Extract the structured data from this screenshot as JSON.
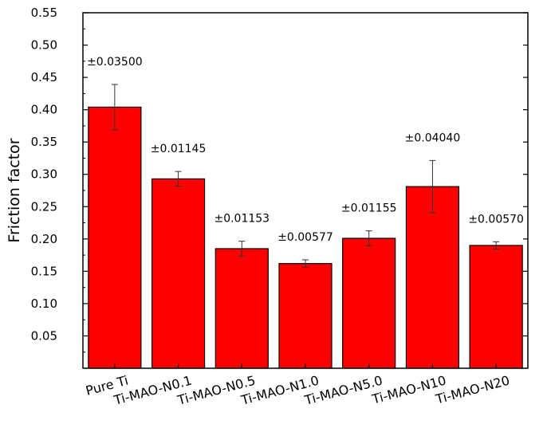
{
  "chart_data": {
    "type": "bar",
    "title": "",
    "xlabel": "",
    "ylabel": "Friction factor",
    "ylim": [
      0,
      0.55
    ],
    "yticks": [
      "0.05",
      "0.10",
      "0.15",
      "0.20",
      "0.25",
      "0.30",
      "0.35",
      "0.40",
      "0.45",
      "0.50",
      "0.55"
    ],
    "categories": [
      "Pure Ti",
      "Ti-MAO-N0.1",
      "Ti-MAO-N0.5",
      "Ti-MAO-N1.0",
      "Ti-MAO-N5.0",
      "Ti-MAO-N10",
      "Ti-MAO-N20"
    ],
    "values": [
      0.404,
      0.293,
      0.185,
      0.162,
      0.201,
      0.281,
      0.19
    ],
    "errors": [
      0.035,
      0.01145,
      0.01153,
      0.00577,
      0.01155,
      0.0404,
      0.0057
    ],
    "error_labels": [
      "±0.03500",
      "±0.01145",
      "±0.01153",
      "±0.00577",
      "±0.01155",
      "±0.04040",
      "±0.00570"
    ],
    "bar_color": "#ff0000",
    "bar_edge_color": "#000000",
    "grid": false,
    "legend": "none"
  }
}
